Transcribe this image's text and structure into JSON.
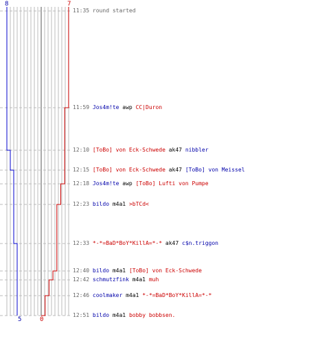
{
  "scores": {
    "blue_start": "8",
    "red_start": "7",
    "blue_end": "5",
    "red_end": "0"
  },
  "colors": {
    "blue_team": "#0000cc",
    "red_team": "#cc0000",
    "grid": "#bbbbbb",
    "center_line": "#555555",
    "dashed": "#bbbbbb"
  },
  "events": [
    {
      "time": "11:35",
      "type": "status",
      "text": "round started"
    },
    {
      "time": "11:59",
      "type": "kill",
      "killer": "Jos4m!te",
      "killer_team": "blue",
      "weapon": "awp",
      "victim": "CC|Duron",
      "victim_team": "red"
    },
    {
      "time": "12:10",
      "type": "kill",
      "killer": "[ToBo] von Eck-Schwede",
      "killer_team": "red",
      "weapon": "ak47",
      "victim": "nibbler",
      "victim_team": "blue"
    },
    {
      "time": "12:15",
      "type": "kill",
      "killer": "[ToBo] von Eck-Schwede",
      "killer_team": "red",
      "weapon": "ak47",
      "victim": "[ToBo] von Meissel",
      "victim_team": "blue"
    },
    {
      "time": "12:18",
      "type": "kill",
      "killer": "Jos4m!te",
      "killer_team": "blue",
      "weapon": "awp",
      "victim": "[ToBo] Lufti von Pumpe",
      "victim_team": "red"
    },
    {
      "time": "12:23",
      "type": "kill",
      "killer": "bildo",
      "killer_team": "blue",
      "weapon": "m4a1",
      "victim": ">bTCd<",
      "victim_team": "red"
    },
    {
      "time": "12:33",
      "type": "kill",
      "killer": "*-*=BaD*BoY*KillA=*-*",
      "killer_team": "red",
      "weapon": "ak47",
      "victim": "c$n.triggon",
      "victim_team": "blue"
    },
    {
      "time": "12:40",
      "type": "kill",
      "killer": "bildo",
      "killer_team": "blue",
      "weapon": "m4a1",
      "victim": "[ToBo] von Eck-Schwede",
      "victim_team": "red"
    },
    {
      "time": "12:42",
      "type": "kill",
      "killer": "schmutzfink",
      "killer_team": "blue",
      "weapon": "m4a1",
      "victim": "muh",
      "victim_team": "red"
    },
    {
      "time": "12:46",
      "type": "kill",
      "killer": "coolmaker",
      "killer_team": "blue",
      "weapon": "m4a1",
      "victim": "*-*=BaD*BoY*KillA=*-*",
      "victim_team": "red"
    },
    {
      "time": "12:51",
      "type": "kill",
      "killer": "bildo",
      "killer_team": "blue",
      "weapon": "m4a1",
      "victim": "bobby bobbsen.",
      "victim_team": "red"
    }
  ],
  "chart_data": {
    "type": "line",
    "series": [],
    "timeline_alive": {
      "blue": [
        8,
        8,
        7,
        6,
        6,
        6,
        5,
        5,
        5,
        5,
        5
      ],
      "red": [
        7,
        6,
        6,
        6,
        5,
        4,
        4,
        3,
        2,
        1,
        0
      ]
    }
  }
}
